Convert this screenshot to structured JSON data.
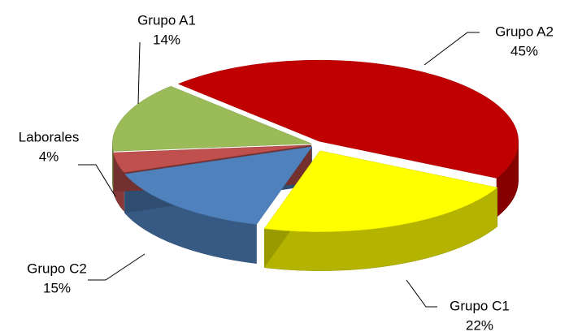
{
  "chart_data": {
    "type": "pie",
    "categories": [
      "Grupo A2",
      "Grupo C1",
      "Grupo C2",
      "Laborales",
      "Grupo A1"
    ],
    "values": [
      45,
      22,
      15,
      4,
      14
    ],
    "value_labels": [
      "45%",
      "22%",
      "15%",
      "4%",
      "14%"
    ],
    "colors": [
      "#c00000",
      "#ffff00",
      "#4f81bd",
      "#c0504d",
      "#9bbb59"
    ]
  }
}
